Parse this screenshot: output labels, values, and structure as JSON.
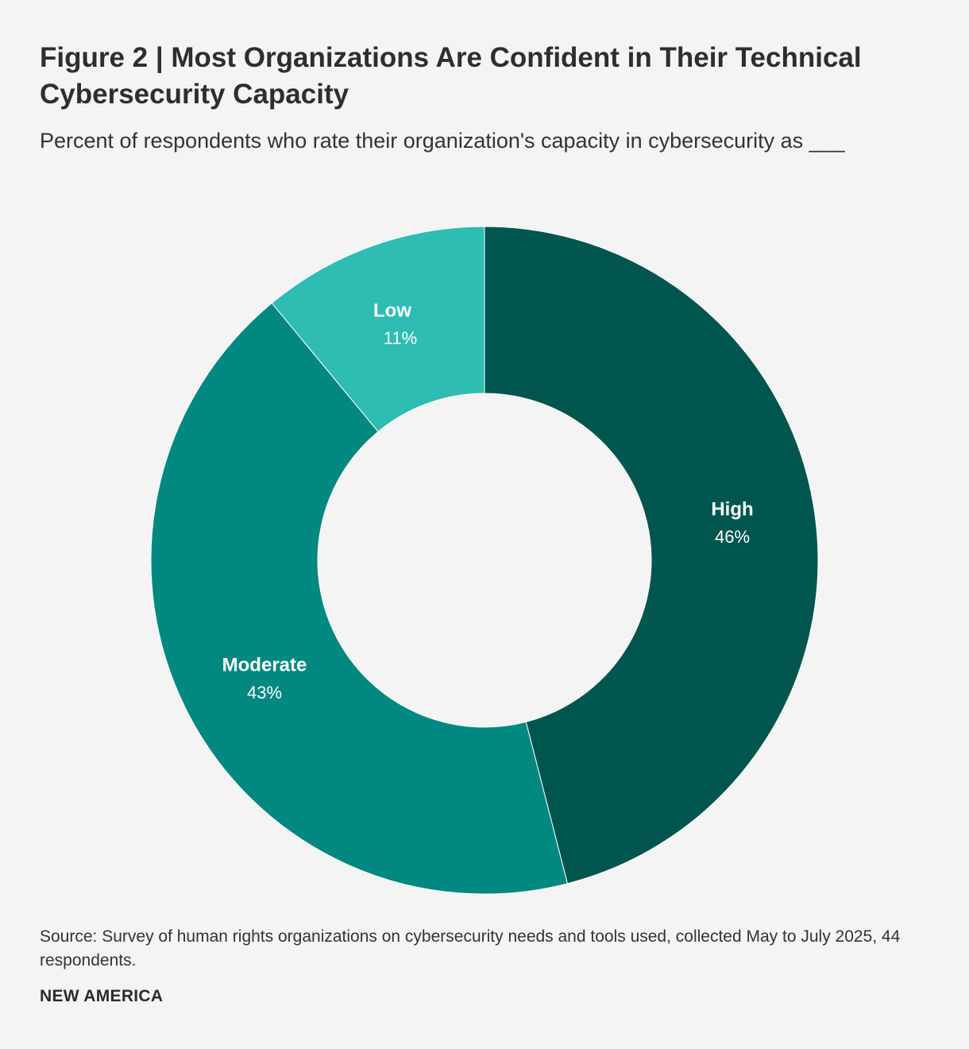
{
  "header": {
    "title": "Figure 2 | Most Organizations Are Confident in Their Technical Cybersecurity Capacity",
    "subtitle": "Percent of respondents who rate their organization's capacity in cybersecurity as ___"
  },
  "chart_data": {
    "type": "pie",
    "variant": "donut",
    "title": "Figure 2 | Most Organizations Are Confident in Their Technical Cybersecurity Capacity",
    "subtitle": "Percent of respondents who rate their organization's capacity in cybersecurity as ___",
    "unit": "%",
    "slices": [
      {
        "label": "High",
        "value": 46,
        "value_label": "46%",
        "color": "#00564f"
      },
      {
        "label": "Moderate",
        "value": 43,
        "value_label": "43%",
        "color": "#008881"
      },
      {
        "label": "Low",
        "value": 11,
        "value_label": "11%",
        "color": "#2ebcb3"
      }
    ],
    "start": "12 o'clock",
    "direction": "clockwise",
    "label_color": "#ffffff",
    "separator_color": "#ffffff"
  },
  "footer": {
    "source": "Source: Survey of human rights organizations on cybersecurity needs and tools used, collected May to July 2025, 44 respondents.",
    "brand": "NEW AMERICA"
  }
}
